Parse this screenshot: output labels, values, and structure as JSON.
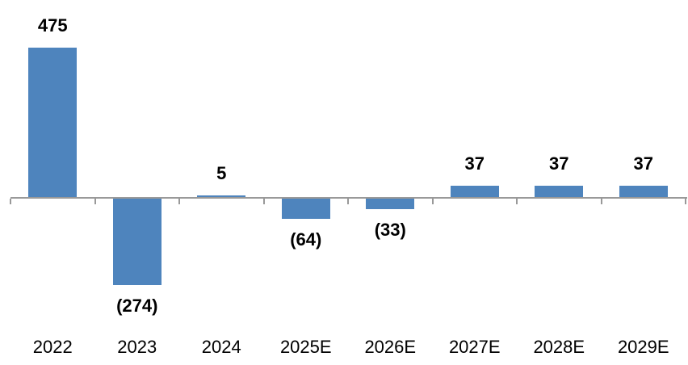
{
  "chart_data": {
    "type": "bar",
    "title": "",
    "xlabel": "",
    "ylabel": "",
    "categories": [
      "2022",
      "2023",
      "2024",
      "2025E",
      "2026E",
      "2027E",
      "2028E",
      "2029E"
    ],
    "values": [
      475,
      -274,
      5,
      -64,
      -33,
      37,
      37,
      37
    ],
    "value_labels": [
      "475",
      "(274)",
      "5",
      "(64)",
      "(33)",
      "37",
      "37",
      "37"
    ],
    "ylim": [
      -300,
      500
    ],
    "grid": false,
    "legend": false,
    "bar_color": "#4e84bd",
    "axis_color": "#999999",
    "label_color": "#000000",
    "background_color": "#ffffff",
    "negative_label_style": "parentheses",
    "data_label_position": "outside-end"
  }
}
